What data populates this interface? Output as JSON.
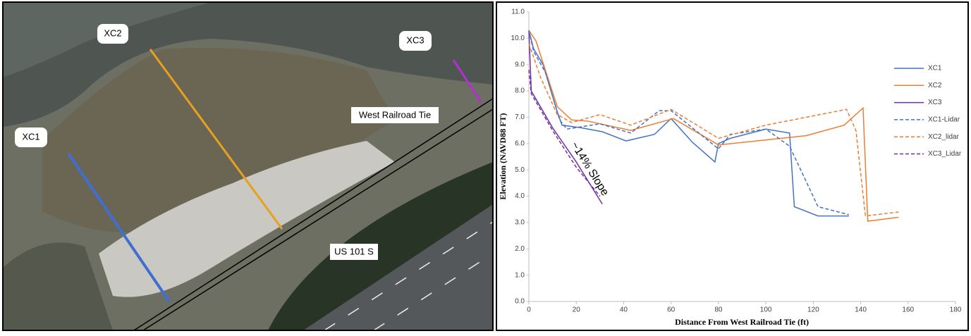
{
  "photo": {
    "labels": [
      "XC2",
      "XC3",
      "XC1",
      "West Railroad Tie",
      "US 101 S"
    ]
  },
  "chart_data": {
    "type": "line",
    "x_label": "Distance From West Railroad Tie (ft)",
    "y_label": "Elevation (NAVD88 FT)",
    "annotation": "~14% Slope",
    "xlim": [
      0,
      180
    ],
    "xticks": [
      0,
      20,
      40,
      60,
      80,
      100,
      120,
      140,
      160,
      180
    ],
    "ylim": [
      0,
      11
    ],
    "yticks": [
      {
        "value": 0,
        "label": "0.0"
      },
      {
        "value": 1,
        "label": "1.0"
      },
      {
        "value": 2,
        "label": "2.0"
      },
      {
        "value": 3,
        "label": "3.0"
      },
      {
        "value": 4,
        "label": "4.0"
      },
      {
        "value": 5,
        "label": "5.0"
      },
      {
        "value": 6,
        "label": "6.0"
      },
      {
        "value": 7,
        "label": "7.0"
      },
      {
        "value": 8,
        "label": "8.0"
      },
      {
        "value": 9,
        "label": "9.0"
      },
      {
        "value": 10,
        "label": "10.0"
      },
      {
        "value": 11,
        "label": "11.0"
      }
    ],
    "legend": "right",
    "series": [
      {
        "name": "XC1",
        "color": "#4472c4",
        "dash": false,
        "x": [
          0,
          2,
          6,
          12,
          14,
          22,
          31,
          41,
          53,
          60,
          69,
          78.5,
          80,
          85,
          100,
          110,
          112,
          122,
          135
        ],
        "values": [
          10.3,
          9.6,
          9.0,
          7.2,
          6.7,
          6.6,
          6.45,
          6.1,
          6.35,
          6.95,
          6.05,
          5.3,
          6.0,
          6.2,
          6.55,
          6.4,
          3.6,
          3.25,
          3.25
        ]
      },
      {
        "name": "XC2",
        "color": "#ed7d31",
        "dash": false,
        "x": [
          0,
          3,
          8,
          12,
          18,
          25,
          43,
          61,
          80,
          117,
          133,
          141,
          143,
          156
        ],
        "values": [
          10.3,
          9.9,
          8.5,
          7.4,
          6.9,
          6.85,
          6.5,
          6.95,
          5.95,
          6.3,
          6.7,
          7.35,
          3.05,
          3.2
        ]
      },
      {
        "name": "XC3",
        "color": "#7030a0",
        "dash": false,
        "x": [
          0,
          1,
          10,
          20,
          31
        ],
        "values": [
          10.3,
          8.0,
          6.6,
          5.3,
          3.7
        ]
      },
      {
        "name": "XC1-Lidar",
        "color": "#4472c4",
        "dash": true,
        "x": [
          0,
          2,
          7,
          13,
          16,
          30,
          43,
          55,
          60,
          80,
          85,
          100,
          110,
          122,
          135
        ],
        "values": [
          10.3,
          9.5,
          8.7,
          6.9,
          6.55,
          6.75,
          6.4,
          7.25,
          7.25,
          5.8,
          6.35,
          6.55,
          5.9,
          3.6,
          3.3
        ]
      },
      {
        "name": "XC2_lidar",
        "color": "#ed7d31",
        "dash": true,
        "x": [
          0,
          5,
          12,
          18,
          30,
          43,
          60,
          80,
          100,
          134,
          138,
          142,
          156
        ],
        "values": [
          9.8,
          8.5,
          7.1,
          6.8,
          7.1,
          6.7,
          7.3,
          6.2,
          6.7,
          7.3,
          6.5,
          3.25,
          3.4
        ]
      },
      {
        "name": "XC3_Lidar",
        "color": "#7030a0",
        "dash": true,
        "x": [
          0,
          1,
          10,
          20,
          30
        ],
        "values": [
          8.8,
          7.9,
          6.5,
          5.1,
          4.0
        ]
      }
    ]
  }
}
